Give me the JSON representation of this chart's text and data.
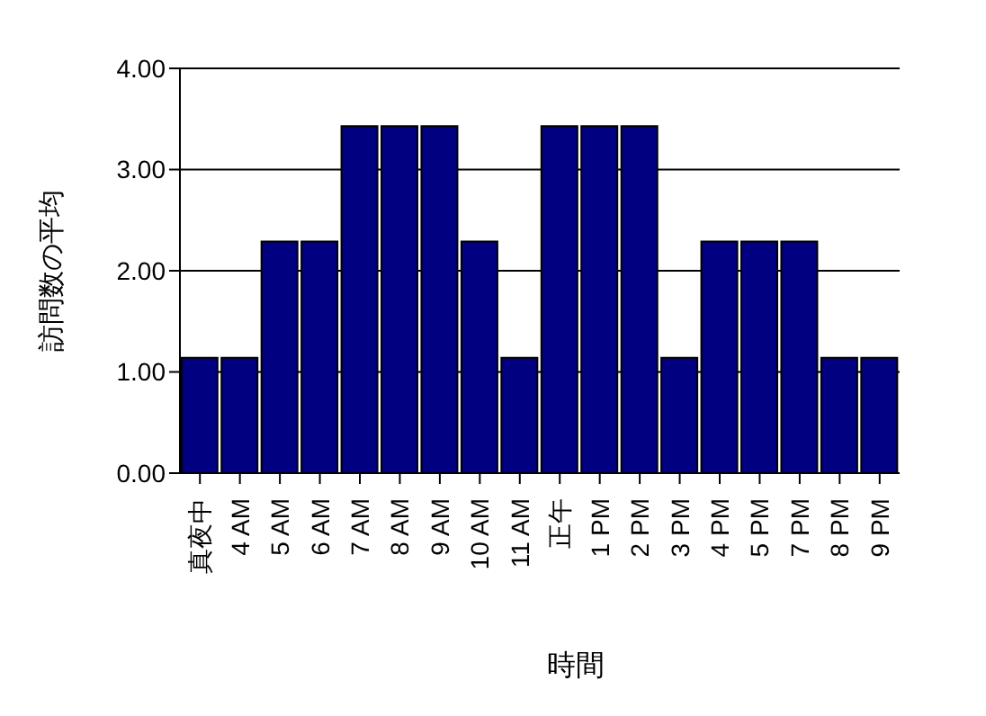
{
  "chart_data": {
    "type": "bar",
    "xlabel": "時間",
    "ylabel": "訪問数の平均",
    "categories": [
      "真夜中",
      "4 AM",
      "5 AM",
      "6 AM",
      "7 AM",
      "8 AM",
      "9 AM",
      "10 AM",
      "11 AM",
      "正午",
      "1 PM",
      "2 PM",
      "3 PM",
      "4 PM",
      "5 PM",
      "7 PM",
      "8 PM",
      "9 PM"
    ],
    "values": [
      1.14,
      1.14,
      2.29,
      2.29,
      3.43,
      3.43,
      3.43,
      2.29,
      1.14,
      3.43,
      3.43,
      3.43,
      1.14,
      2.29,
      2.29,
      2.29,
      1.14,
      1.14
    ],
    "color": "#000080",
    "ylim": [
      0,
      4
    ],
    "yticks": [
      {
        "value": 0,
        "label": "0.00"
      },
      {
        "value": 1,
        "label": "1.00"
      },
      {
        "value": 2,
        "label": "2.00"
      },
      {
        "value": 3,
        "label": "3.00"
      },
      {
        "value": 4,
        "label": "4.00"
      }
    ],
    "grid": "y",
    "legend": false
  }
}
